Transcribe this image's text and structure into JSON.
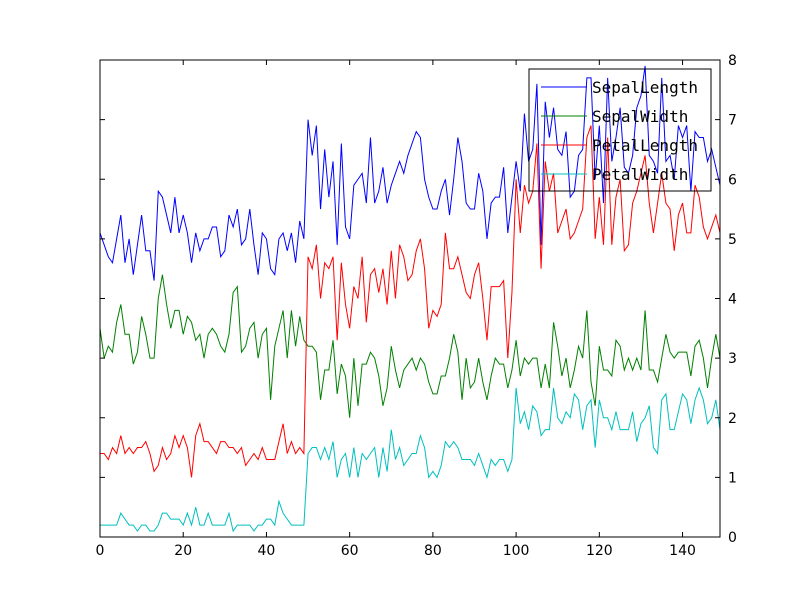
{
  "chart_data": {
    "type": "line",
    "title": "",
    "xlabel": "",
    "ylabel": "",
    "xlim": [
      0,
      149
    ],
    "ylim": [
      0,
      8
    ],
    "xticks": [
      "0",
      "20",
      "40",
      "60",
      "80",
      "100",
      "120",
      "140"
    ],
    "yticks": [
      "0",
      "1",
      "2",
      "3",
      "4",
      "5",
      "6",
      "7",
      "8"
    ],
    "y_axis_side": "right",
    "grid": false,
    "legend_placement": "top-right",
    "x": [
      0,
      1,
      2,
      3,
      4,
      5,
      6,
      7,
      8,
      9,
      10,
      11,
      12,
      13,
      14,
      15,
      16,
      17,
      18,
      19,
      20,
      21,
      22,
      23,
      24,
      25,
      26,
      27,
      28,
      29,
      30,
      31,
      32,
      33,
      34,
      35,
      36,
      37,
      38,
      39,
      40,
      41,
      42,
      43,
      44,
      45,
      46,
      47,
      48,
      49,
      50,
      51,
      52,
      53,
      54,
      55,
      56,
      57,
      58,
      59,
      60,
      61,
      62,
      63,
      64,
      65,
      66,
      67,
      68,
      69,
      70,
      71,
      72,
      73,
      74,
      75,
      76,
      77,
      78,
      79,
      80,
      81,
      82,
      83,
      84,
      85,
      86,
      87,
      88,
      89,
      90,
      91,
      92,
      93,
      94,
      95,
      96,
      97,
      98,
      99,
      100,
      101,
      102,
      103,
      104,
      105,
      106,
      107,
      108,
      109,
      110,
      111,
      112,
      113,
      114,
      115,
      116,
      117,
      118,
      119,
      120,
      121,
      122,
      123,
      124,
      125,
      126,
      127,
      128,
      129,
      130,
      131,
      132,
      133,
      134,
      135,
      136,
      137,
      138,
      139,
      140,
      141,
      142,
      143,
      144,
      145,
      146,
      147,
      148,
      149
    ],
    "series": [
      {
        "name": "SepalLength",
        "color": "#0000ff",
        "values": [
          5.1,
          4.9,
          4.7,
          4.6,
          5.0,
          5.4,
          4.6,
          5.0,
          4.4,
          4.9,
          5.4,
          4.8,
          4.8,
          4.3,
          5.8,
          5.7,
          5.4,
          5.1,
          5.7,
          5.1,
          5.4,
          5.1,
          4.6,
          5.1,
          4.8,
          5.0,
          5.0,
          5.2,
          5.2,
          4.7,
          4.8,
          5.4,
          5.2,
          5.5,
          4.9,
          5.0,
          5.5,
          4.9,
          4.4,
          5.1,
          5.0,
          4.5,
          4.4,
          5.0,
          5.1,
          4.8,
          5.1,
          4.6,
          5.3,
          5.0,
          7.0,
          6.4,
          6.9,
          5.5,
          6.5,
          5.7,
          6.3,
          4.9,
          6.6,
          5.2,
          5.0,
          5.9,
          6.0,
          6.1,
          5.6,
          6.7,
          5.6,
          5.8,
          6.2,
          5.6,
          5.9,
          6.1,
          6.3,
          6.1,
          6.4,
          6.6,
          6.8,
          6.7,
          6.0,
          5.7,
          5.5,
          5.5,
          5.8,
          6.0,
          5.4,
          6.0,
          6.7,
          6.3,
          5.6,
          5.5,
          5.5,
          6.1,
          5.8,
          5.0,
          5.6,
          5.7,
          5.7,
          6.2,
          5.1,
          5.7,
          6.3,
          5.8,
          7.1,
          6.3,
          6.5,
          7.6,
          4.9,
          7.3,
          6.7,
          7.2,
          6.5,
          6.4,
          6.8,
          5.7,
          5.8,
          6.4,
          6.5,
          7.7,
          7.7,
          6.0,
          6.9,
          5.6,
          7.7,
          6.3,
          6.7,
          7.2,
          6.2,
          6.1,
          6.4,
          7.2,
          7.4,
          7.9,
          6.4,
          6.3,
          6.1,
          7.7,
          6.3,
          6.4,
          6.0,
          6.9,
          6.7,
          6.9,
          5.8,
          6.8,
          6.7,
          6.7,
          6.3,
          6.5,
          6.2,
          5.9
        ]
      },
      {
        "name": "SepalWidth",
        "color": "#008000",
        "values": [
          3.5,
          3.0,
          3.2,
          3.1,
          3.6,
          3.9,
          3.4,
          3.4,
          2.9,
          3.1,
          3.7,
          3.4,
          3.0,
          3.0,
          4.0,
          4.4,
          3.9,
          3.5,
          3.8,
          3.8,
          3.4,
          3.7,
          3.6,
          3.3,
          3.4,
          3.0,
          3.4,
          3.5,
          3.4,
          3.2,
          3.1,
          3.4,
          4.1,
          4.2,
          3.1,
          3.2,
          3.5,
          3.6,
          3.0,
          3.4,
          3.5,
          2.3,
          3.2,
          3.5,
          3.8,
          3.0,
          3.8,
          3.2,
          3.7,
          3.3,
          3.2,
          3.2,
          3.1,
          2.3,
          2.8,
          2.8,
          3.3,
          2.4,
          2.9,
          2.7,
          2.0,
          3.0,
          2.2,
          2.9,
          2.9,
          3.1,
          3.0,
          2.7,
          2.2,
          2.5,
          3.2,
          2.8,
          2.5,
          2.8,
          2.9,
          3.0,
          2.8,
          3.0,
          2.9,
          2.6,
          2.4,
          2.4,
          2.7,
          2.7,
          3.0,
          3.4,
          3.1,
          2.3,
          3.0,
          2.5,
          2.6,
          3.0,
          2.6,
          2.3,
          2.7,
          3.0,
          2.9,
          2.9,
          2.5,
          2.8,
          3.3,
          2.7,
          3.0,
          2.9,
          3.0,
          3.0,
          2.5,
          2.9,
          2.5,
          3.6,
          3.2,
          2.7,
          3.0,
          2.5,
          2.8,
          3.2,
          3.0,
          3.8,
          2.6,
          2.2,
          3.2,
          2.8,
          2.8,
          2.7,
          3.3,
          3.2,
          2.8,
          3.0,
          2.8,
          3.0,
          2.8,
          3.8,
          2.8,
          2.8,
          2.6,
          3.0,
          3.4,
          3.1,
          3.0,
          3.1,
          3.1,
          3.1,
          2.7,
          3.2,
          3.3,
          3.0,
          2.5,
          3.0,
          3.4,
          3.0
        ]
      },
      {
        "name": "PetalLength",
        "color": "#ff0000",
        "values": [
          1.4,
          1.4,
          1.3,
          1.5,
          1.4,
          1.7,
          1.4,
          1.5,
          1.4,
          1.5,
          1.5,
          1.6,
          1.4,
          1.1,
          1.2,
          1.5,
          1.3,
          1.4,
          1.7,
          1.5,
          1.7,
          1.5,
          1.0,
          1.7,
          1.9,
          1.6,
          1.6,
          1.5,
          1.4,
          1.6,
          1.6,
          1.5,
          1.5,
          1.4,
          1.5,
          1.2,
          1.3,
          1.4,
          1.3,
          1.5,
          1.3,
          1.3,
          1.3,
          1.6,
          1.9,
          1.4,
          1.6,
          1.4,
          1.5,
          1.4,
          4.7,
          4.5,
          4.9,
          4.0,
          4.6,
          4.5,
          4.7,
          3.3,
          4.6,
          3.9,
          3.5,
          4.2,
          4.0,
          4.7,
          3.6,
          4.4,
          4.5,
          4.1,
          4.5,
          3.9,
          4.8,
          4.0,
          4.9,
          4.7,
          4.3,
          4.4,
          4.8,
          5.0,
          4.5,
          3.5,
          3.8,
          3.7,
          3.9,
          5.1,
          4.5,
          4.5,
          4.7,
          4.4,
          4.1,
          4.0,
          4.4,
          4.6,
          4.0,
          3.3,
          4.2,
          4.2,
          4.2,
          4.3,
          3.0,
          4.1,
          6.0,
          5.1,
          5.9,
          5.6,
          5.8,
          6.6,
          4.5,
          6.3,
          5.8,
          6.1,
          5.1,
          5.3,
          5.5,
          5.0,
          5.1,
          5.3,
          5.5,
          6.7,
          6.9,
          5.0,
          5.7,
          4.9,
          6.7,
          4.9,
          5.7,
          6.0,
          4.8,
          4.9,
          5.6,
          5.8,
          6.1,
          6.4,
          5.6,
          5.1,
          5.6,
          6.1,
          5.6,
          5.5,
          4.8,
          5.4,
          5.6,
          5.1,
          5.1,
          5.9,
          5.7,
          5.2,
          5.0,
          5.2,
          5.4,
          5.1
        ]
      },
      {
        "name": "PetalWidth",
        "color": "#00bfbf",
        "values": [
          0.2,
          0.2,
          0.2,
          0.2,
          0.2,
          0.4,
          0.3,
          0.2,
          0.2,
          0.1,
          0.2,
          0.2,
          0.1,
          0.1,
          0.2,
          0.4,
          0.4,
          0.3,
          0.3,
          0.3,
          0.2,
          0.4,
          0.2,
          0.5,
          0.2,
          0.2,
          0.4,
          0.2,
          0.2,
          0.2,
          0.2,
          0.4,
          0.1,
          0.2,
          0.2,
          0.2,
          0.2,
          0.1,
          0.2,
          0.2,
          0.3,
          0.3,
          0.2,
          0.6,
          0.4,
          0.3,
          0.2,
          0.2,
          0.2,
          0.2,
          1.4,
          1.5,
          1.5,
          1.3,
          1.5,
          1.3,
          1.6,
          1.0,
          1.3,
          1.4,
          1.0,
          1.5,
          1.0,
          1.4,
          1.3,
          1.4,
          1.5,
          1.0,
          1.5,
          1.1,
          1.8,
          1.3,
          1.5,
          1.2,
          1.3,
          1.4,
          1.4,
          1.7,
          1.5,
          1.0,
          1.1,
          1.0,
          1.2,
          1.6,
          1.5,
          1.6,
          1.5,
          1.3,
          1.3,
          1.3,
          1.2,
          1.4,
          1.2,
          1.0,
          1.3,
          1.2,
          1.3,
          1.3,
          1.1,
          1.3,
          2.5,
          1.9,
          2.1,
          1.8,
          2.2,
          2.1,
          1.7,
          1.8,
          1.8,
          2.5,
          2.0,
          1.9,
          2.1,
          2.0,
          2.4,
          2.3,
          1.8,
          2.2,
          2.3,
          1.5,
          2.3,
          2.0,
          2.0,
          1.8,
          2.1,
          1.8,
          1.8,
          1.8,
          2.1,
          1.6,
          1.9,
          2.0,
          2.2,
          1.5,
          1.4,
          2.3,
          2.4,
          1.8,
          1.8,
          2.1,
          2.4,
          2.3,
          1.9,
          2.3,
          2.5,
          2.3,
          1.9,
          2.0,
          2.3,
          1.8
        ]
      }
    ]
  }
}
